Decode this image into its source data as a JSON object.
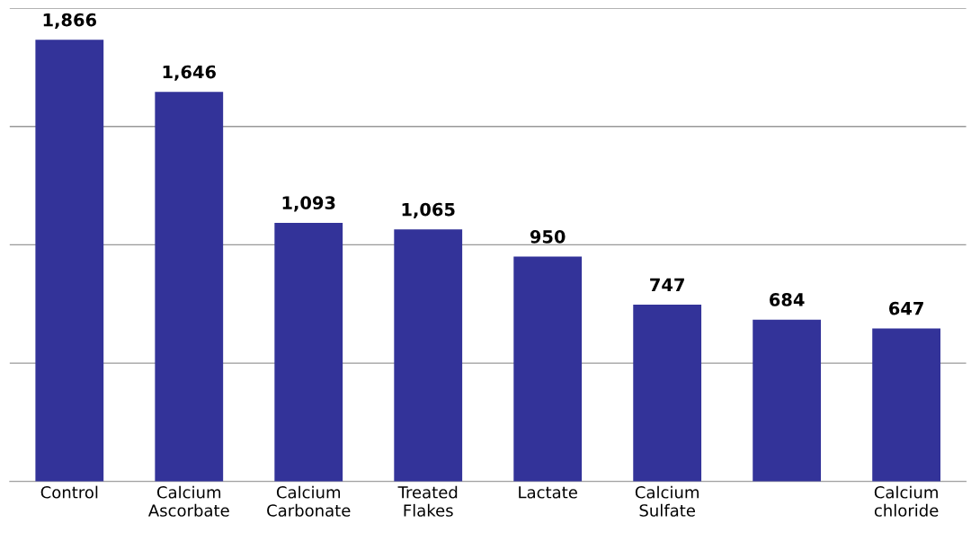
{
  "chart_data": {
    "type": "bar",
    "categories": [
      "Control",
      "Calcium\nAscorbate",
      "Calcium\nCarbonate",
      "Treated\nFlakes",
      "Lactate",
      "Calcium\nSulfate",
      null,
      "Calcium\nchloride"
    ],
    "values": [
      1866,
      1646,
      1093,
      1065,
      950,
      747,
      684,
      647
    ],
    "value_labels": [
      "1,866",
      "1,646",
      "1,093",
      "1,065",
      "950",
      "747",
      "684",
      "647"
    ],
    "color": "#333399",
    "ylim": [
      0,
      2000
    ],
    "yticks": [
      {
        "value": 0,
        "label": null
      },
      {
        "value": 500,
        "label": null
      },
      {
        "value": 1000,
        "label": null
      },
      {
        "value": 1500,
        "label": null
      },
      {
        "value": 2000,
        "label": null
      }
    ],
    "tick_labels": "x",
    "grid": "y",
    "legend": false
  }
}
